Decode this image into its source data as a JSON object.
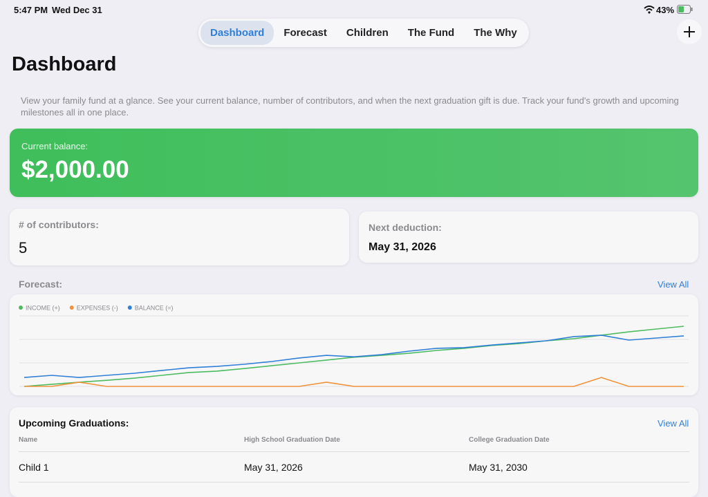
{
  "status_bar": {
    "time": "5:47 PM",
    "date": "Wed Dec 31",
    "battery": "43%"
  },
  "tabs": [
    "Dashboard",
    "Forecast",
    "Children",
    "The Fund",
    "The Why"
  ],
  "header": {
    "title": "Dashboard",
    "description": "View your family fund at a glance. See your current balance, number of contributors, and when the next graduation gift is due. Track your fund's growth and upcoming milestones all in one place."
  },
  "balance_card": {
    "label": "Current balance:",
    "value": "$2,000.00"
  },
  "contributors_card": {
    "label": "# of contributors:",
    "value": "5"
  },
  "deduction_card": {
    "label": "Next deduction:",
    "value": "May 31, 2026"
  },
  "forecast": {
    "label": "Forecast:",
    "link": "View All"
  },
  "chart_data": {
    "type": "line",
    "categories": [
      null,
      null,
      null,
      null,
      null,
      null,
      null,
      null,
      null,
      null,
      null,
      null,
      null,
      null,
      null,
      null,
      null,
      null,
      null,
      null,
      null,
      null,
      null,
      null,
      null
    ],
    "series": [
      {
        "name": "INCOME (+)",
        "color": "#4cbb5f",
        "values": [
          0,
          0.09,
          0.18,
          0.26,
          0.35,
          0.47,
          0.59,
          0.65,
          0.76,
          0.88,
          1.0,
          1.12,
          1.24,
          1.32,
          1.41,
          1.53,
          1.62,
          1.74,
          1.82,
          1.94,
          2.03,
          2.18,
          2.32,
          2.44,
          2.56
        ]
      },
      {
        "name": "EXPENSES (-)",
        "color": "#f0923a",
        "values": [
          0,
          0,
          0.18,
          0,
          0,
          0,
          0,
          0,
          0,
          0,
          0,
          0.18,
          0,
          0,
          0,
          0,
          0,
          0,
          0,
          0,
          0,
          0.38,
          0,
          0,
          0
        ]
      },
      {
        "name": "BALANCE (=)",
        "color": "#2f7fd6",
        "values": [
          0.38,
          0.47,
          0.38,
          0.47,
          0.56,
          0.68,
          0.79,
          0.85,
          0.94,
          1.06,
          1.21,
          1.32,
          1.26,
          1.35,
          1.5,
          1.62,
          1.65,
          1.76,
          1.85,
          1.94,
          2.12,
          2.18,
          1.97,
          2.06,
          2.15
        ]
      }
    ],
    "ylim": [
      0,
      3
    ],
    "yticks": [
      0,
      1,
      2,
      3
    ],
    "grid": true
  },
  "graduations": {
    "title": "Upcoming Graduations:",
    "link": "View All",
    "columns": [
      "Name",
      "High School Graduation Date",
      "College Graduation Date"
    ],
    "rows": [
      [
        "Child 1",
        "May 31, 2026",
        "May 31, 2030"
      ]
    ]
  }
}
